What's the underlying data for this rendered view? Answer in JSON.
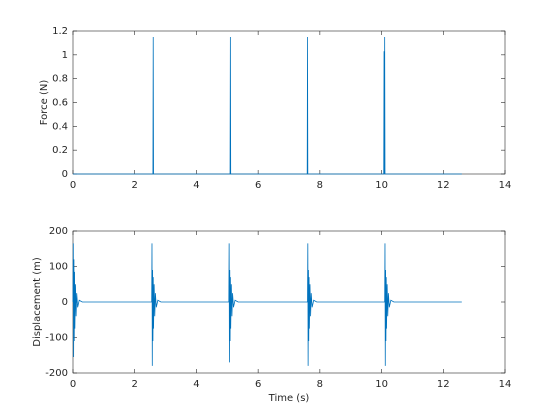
{
  "chart_data": [
    {
      "type": "line",
      "ylabel": "Force (N)",
      "color": "#0072bd",
      "x": [
        0,
        2.59,
        2.6,
        2.61,
        5.09,
        5.1,
        5.11,
        7.59,
        7.6,
        7.61,
        10.07,
        10.08,
        10.09,
        10.1,
        10.11,
        12.6
      ],
      "values": [
        0,
        0,
        1.15,
        0,
        0,
        1.15,
        0,
        0,
        1.15,
        0,
        0,
        1.03,
        0,
        1.15,
        0,
        0
      ],
      "xlim": [
        0,
        14
      ],
      "xticks": [
        0,
        2,
        4,
        6,
        8,
        10,
        12,
        14
      ],
      "ylim": [
        0,
        1.2
      ],
      "yticks": [
        0,
        0.2,
        0.4,
        0.6,
        0.8,
        1,
        1.2
      ]
    },
    {
      "type": "line",
      "ylabel": "Displacement (m)",
      "xlabel": "Time (s)",
      "color": "#0072bd",
      "x": [
        0,
        0.01,
        0.02,
        0.03,
        0.04,
        0.05,
        0.06,
        0.08,
        0.1,
        0.12,
        0.15,
        0.2,
        0.3,
        2.55,
        2.56,
        2.57,
        2.58,
        2.59,
        2.6,
        2.61,
        2.63,
        2.65,
        2.67,
        2.7,
        2.75,
        2.85,
        5.05,
        5.06,
        5.07,
        5.08,
        5.09,
        5.1,
        5.11,
        5.13,
        5.15,
        5.17,
        5.2,
        5.25,
        5.35,
        7.6,
        7.61,
        7.62,
        7.63,
        7.64,
        7.65,
        7.66,
        7.68,
        7.7,
        7.72,
        7.75,
        7.8,
        7.9,
        10.1,
        10.11,
        10.12,
        10.13,
        10.14,
        10.15,
        10.16,
        10.18,
        10.2,
        10.22,
        10.25,
        10.3,
        10.4,
        12.6
      ],
      "values": [
        0,
        165,
        -155,
        120,
        -110,
        85,
        -75,
        50,
        -40,
        25,
        -15,
        5,
        0,
        0,
        165,
        -180,
        90,
        -110,
        70,
        -75,
        50,
        -40,
        25,
        -15,
        5,
        0,
        0,
        165,
        -170,
        90,
        -110,
        70,
        -75,
        50,
        -40,
        25,
        -15,
        5,
        0,
        0,
        165,
        -180,
        90,
        -110,
        70,
        -75,
        50,
        -40,
        25,
        -15,
        5,
        0,
        0,
        165,
        -180,
        90,
        -110,
        70,
        -75,
        50,
        -40,
        25,
        -15,
        5,
        0,
        0
      ],
      "xlim": [
        0,
        14
      ],
      "xticks": [
        0,
        2,
        4,
        6,
        8,
        10,
        12,
        14
      ],
      "ylim": [
        -200,
        200
      ],
      "yticks": [
        -200,
        -100,
        0,
        100,
        200
      ]
    }
  ]
}
